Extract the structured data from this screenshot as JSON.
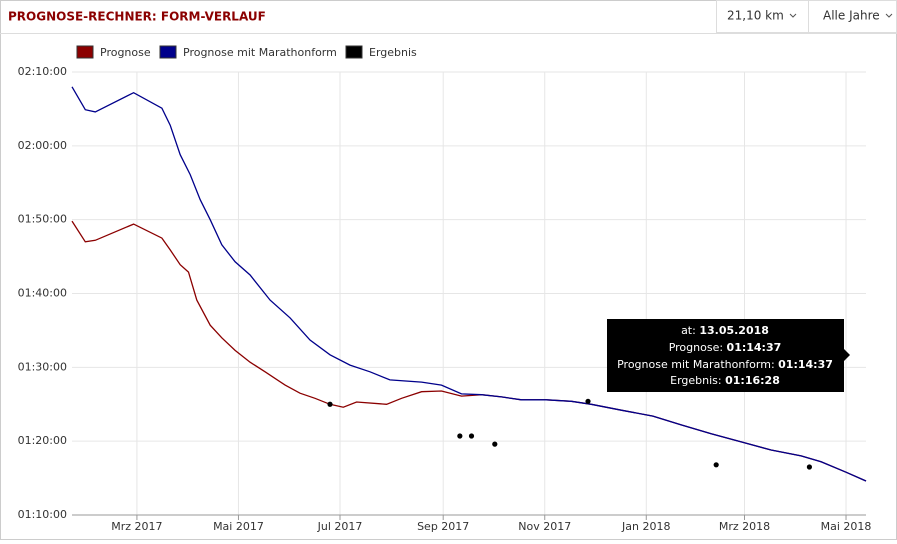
{
  "header": {
    "title": "PROGNOSE-RECHNER: FORM-VERLAUF",
    "distance": "21,10 km",
    "period": "Alle Jahre"
  },
  "chart_data": {
    "type": "line",
    "series": [
      {
        "name": "Prognose",
        "color": "#8b0000",
        "style": "line",
        "x": [
          "2017-01-21",
          "2017-01-29",
          "2017-02-04",
          "2017-02-27",
          "2017-03-16",
          "2017-03-21",
          "2017-03-27",
          "2017-04-01",
          "2017-04-06",
          "2017-04-14",
          "2017-04-21",
          "2017-04-29",
          "2017-05-08",
          "2017-05-17",
          "2017-05-29",
          "2017-06-07",
          "2017-06-16",
          "2017-06-25",
          "2017-07-03",
          "2017-07-11",
          "2017-07-29",
          "2017-08-07",
          "2017-08-19",
          "2017-08-31",
          "2017-09-12",
          "2017-09-24",
          "2017-10-06",
          "2017-10-18",
          "2017-11-02",
          "2017-11-17",
          "2017-11-29",
          "2017-12-17",
          "2018-01-05",
          "2018-01-22",
          "2018-02-09",
          "2018-02-27",
          "2018-03-17",
          "2018-04-04",
          "2018-04-16",
          "2018-05-01",
          "2018-05-13"
        ],
        "values": [
          109.8,
          107.0,
          107.2,
          109.4,
          107.5,
          105.9,
          103.9,
          102.9,
          99.1,
          95.7,
          94.0,
          92.3,
          90.7,
          89.4,
          87.6,
          86.5,
          85.8,
          85.0,
          84.6,
          85.3,
          85.0,
          85.8,
          86.7,
          86.8,
          86.1,
          86.3,
          86.0,
          85.6,
          85.6,
          85.4,
          85.0,
          84.2,
          83.4,
          82.2,
          81.0,
          79.9,
          78.8,
          78.0,
          77.2,
          75.8,
          74.6
        ]
      },
      {
        "name": "Prognose mit Marathonform",
        "color": "#00008b",
        "style": "line",
        "x": [
          "2017-01-21",
          "2017-01-29",
          "2017-02-04",
          "2017-02-27",
          "2017-03-16",
          "2017-03-21",
          "2017-03-27",
          "2017-04-02",
          "2017-04-08",
          "2017-04-14",
          "2017-04-21",
          "2017-04-29",
          "2017-05-08",
          "2017-05-20",
          "2017-06-01",
          "2017-06-13",
          "2017-06-25",
          "2017-07-07",
          "2017-07-19",
          "2017-07-31",
          "2017-08-19",
          "2017-08-31",
          "2017-09-12",
          "2017-09-24",
          "2017-10-06",
          "2017-10-18",
          "2017-11-02",
          "2017-11-17",
          "2017-11-29",
          "2017-12-17",
          "2018-01-05",
          "2018-01-22",
          "2018-02-09",
          "2018-02-27",
          "2018-03-17",
          "2018-04-04",
          "2018-04-16",
          "2018-05-01",
          "2018-05-13"
        ],
        "values": [
          128.0,
          124.9,
          124.6,
          127.2,
          125.1,
          122.8,
          118.8,
          116.1,
          112.7,
          110.0,
          106.6,
          104.3,
          102.5,
          99.1,
          96.7,
          93.7,
          91.7,
          90.3,
          89.4,
          88.3,
          88.0,
          87.6,
          86.4,
          86.3,
          86.0,
          85.6,
          85.6,
          85.4,
          85.0,
          84.2,
          83.4,
          82.2,
          81.0,
          79.9,
          78.8,
          78.0,
          77.2,
          75.8,
          74.6
        ]
      },
      {
        "name": "Ergebnis",
        "color": "#000000",
        "style": "points",
        "x": [
          "2017-06-25",
          "2017-09-11",
          "2017-09-18",
          "2017-10-02",
          "2017-11-27",
          "2018-02-12",
          "2018-04-09"
        ],
        "values": [
          85.0,
          80.7,
          80.7,
          79.6,
          85.4,
          76.8,
          76.5
        ]
      }
    ],
    "xlim": [
      "2017-01-21",
      "2018-05-13"
    ],
    "xticks": [
      {
        "value": "2017-03-01",
        "label": "Mrz 2017"
      },
      {
        "value": "2017-05-01",
        "label": "Mai 2017"
      },
      {
        "value": "2017-07-01",
        "label": "Jul 2017"
      },
      {
        "value": "2017-09-01",
        "label": "Sep 2017"
      },
      {
        "value": "2017-11-01",
        "label": "Nov 2017"
      },
      {
        "value": "2018-01-01",
        "label": "Jan 2018"
      },
      {
        "value": "2018-03-01",
        "label": "Mrz 2018"
      },
      {
        "value": "2018-05-01",
        "label": "Mai 2018"
      }
    ],
    "ylim": [
      70,
      130
    ],
    "yticks": [
      {
        "value": 70,
        "label": "01:10:00"
      },
      {
        "value": 80,
        "label": "01:20:00"
      },
      {
        "value": 90,
        "label": "01:30:00"
      },
      {
        "value": 100,
        "label": "01:40:00"
      },
      {
        "value": 110,
        "label": "01:50:00"
      },
      {
        "value": 120,
        "label": "02:00:00"
      },
      {
        "value": 130,
        "label": "02:10:00"
      }
    ],
    "grid": true
  },
  "tooltip": {
    "rows": [
      [
        "at:",
        "13.05.2018"
      ],
      [
        "Prognose:",
        "01:14:37"
      ],
      [
        "Prognose mit Marathonform:",
        "01:14:37"
      ],
      [
        "Ergebnis:",
        "01:16:28"
      ]
    ]
  }
}
